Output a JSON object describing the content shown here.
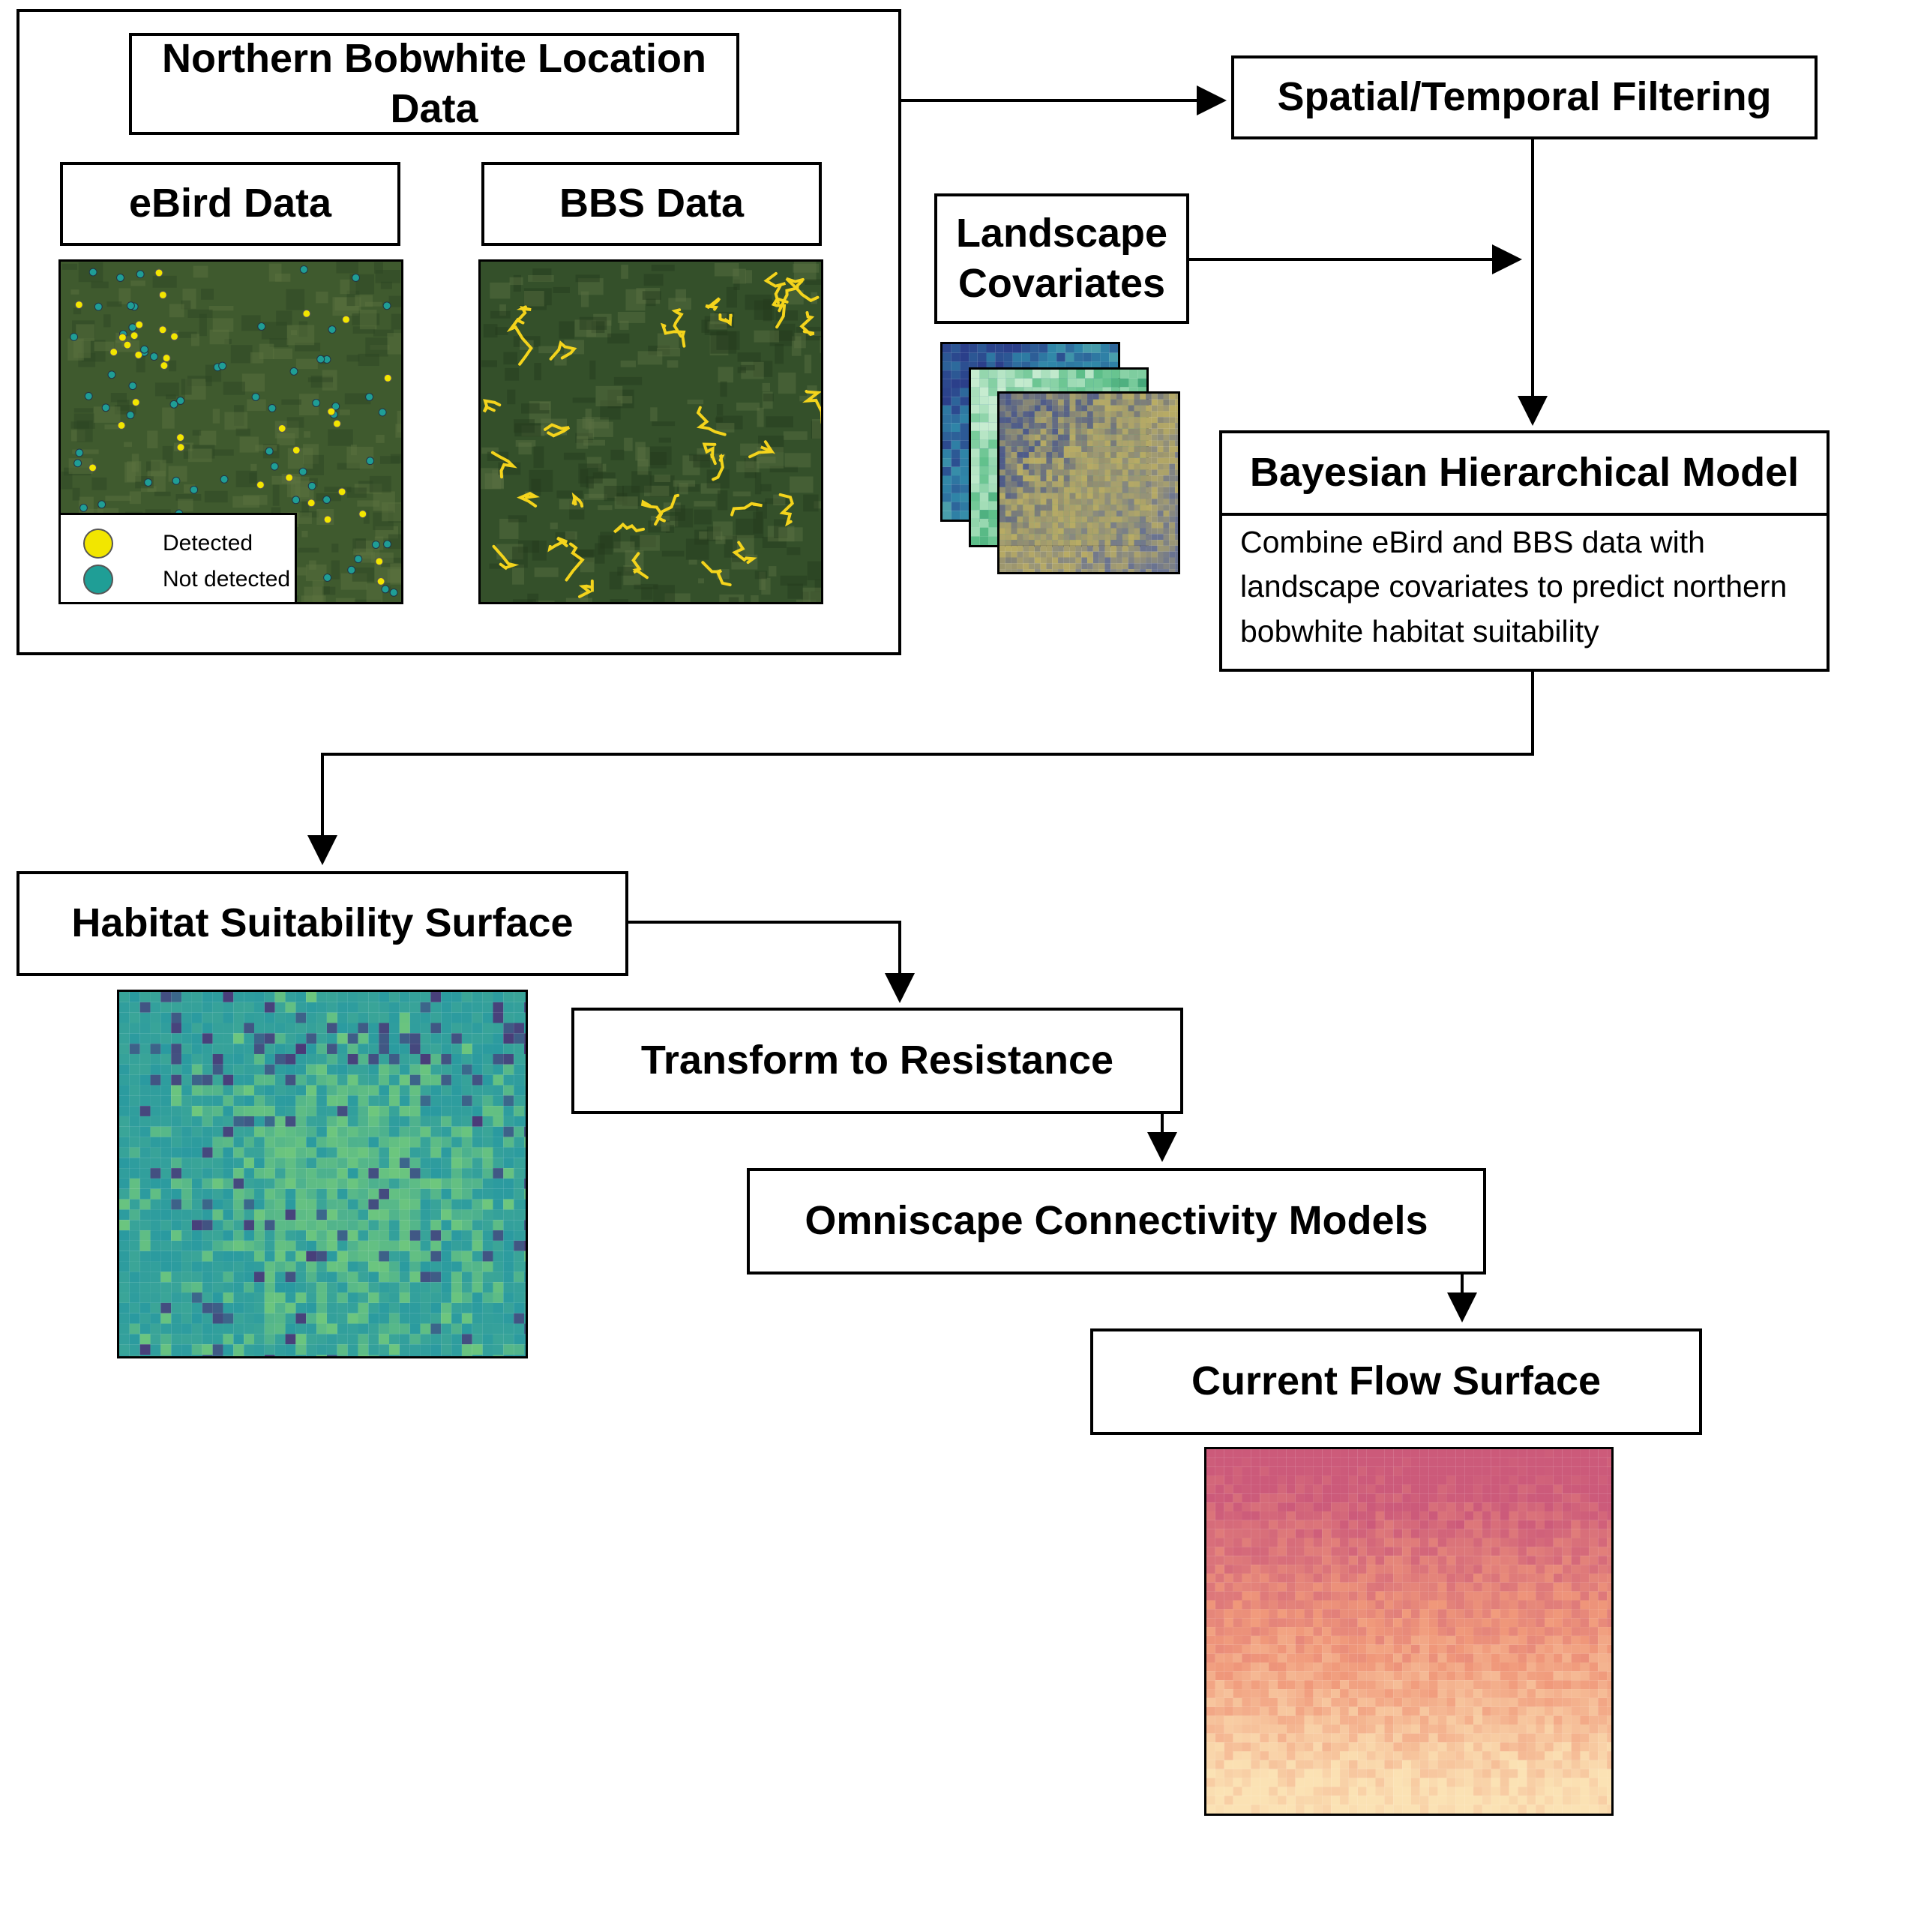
{
  "location_panel": {
    "title": "Northern Bobwhite Location Data",
    "ebird_label": "eBird Data",
    "bbs_label": "BBS Data",
    "legend": {
      "detected": "Detected",
      "not_detected": "Not detected"
    }
  },
  "steps": {
    "filtering": "Spatial/Temporal Filtering",
    "covariates": "Landscape Covariates",
    "model_title": "Bayesian Hierarchical Model",
    "model_description": "Combine eBird and BBS data with landscape covariates to predict northern bobwhite habitat suitability",
    "habitat": "Habitat Suitability Surface",
    "resistance": "Transform to Resistance",
    "omniscape": "Omniscape Connectivity Models",
    "current_flow": "Current Flow Surface"
  },
  "colors": {
    "detected": "#f2e600",
    "not_detected": "#1f9e96",
    "satellite": "#3f5a2e",
    "bbs_route": "#f4d41c",
    "habitat_base": "#2a9aa0",
    "habitat_high": "#6ec77d",
    "habitat_low": "#4a3a78",
    "flow_high": "#cc5a7a",
    "flow_mid": "#f0987a",
    "flow_low": "#fbe2b4"
  }
}
